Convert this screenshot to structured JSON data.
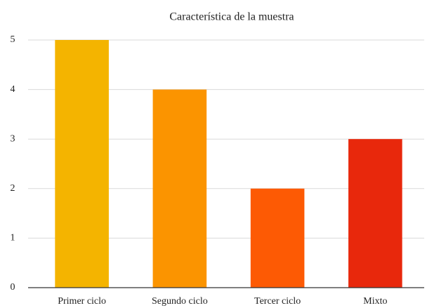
{
  "chart_data": {
    "type": "bar",
    "title": "Característica de la muestra",
    "categories": [
      "Primer ciclo",
      "Segundo ciclo",
      "Tercer ciclo",
      "Mixto"
    ],
    "values": [
      5,
      4,
      2,
      3
    ],
    "colors": [
      "#f4b400",
      "#fb9400",
      "#fd5a04",
      "#e8280c"
    ],
    "ylim": [
      0,
      5
    ],
    "yticks": [
      0,
      1,
      2,
      3,
      4,
      5
    ],
    "grid": true
  }
}
